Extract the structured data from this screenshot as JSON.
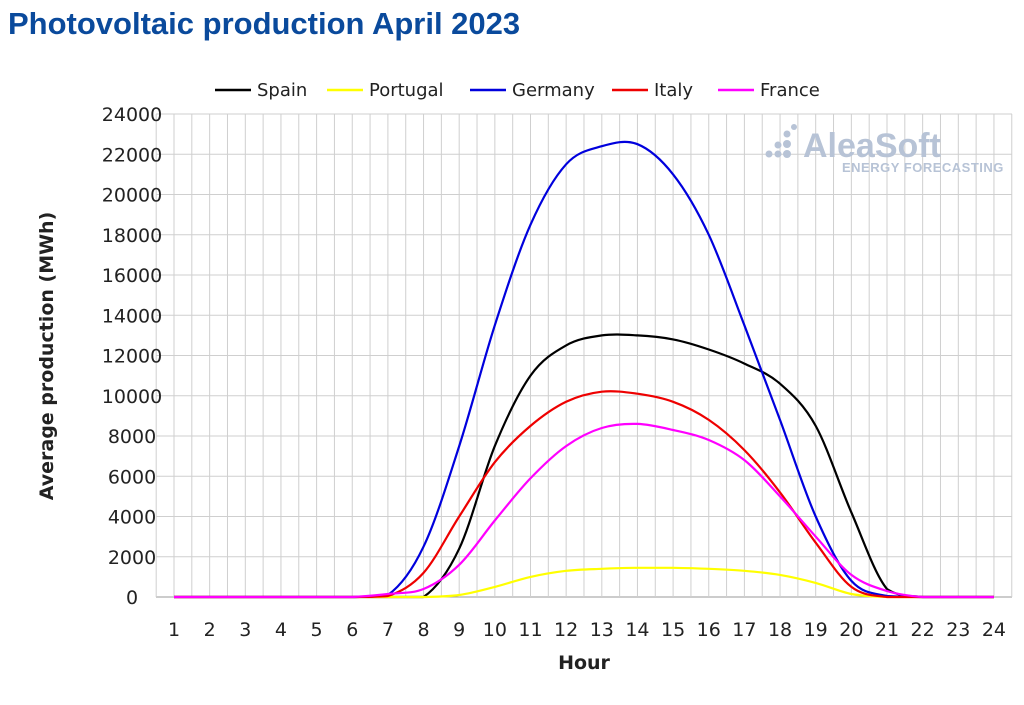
{
  "chart_data": {
    "type": "line",
    "title": "Photovoltaic production April 2023",
    "xlabel": "Hour",
    "ylabel": "Average production (MWh)",
    "x": [
      1,
      2,
      3,
      4,
      5,
      6,
      7,
      8,
      9,
      10,
      11,
      12,
      13,
      14,
      15,
      16,
      17,
      18,
      19,
      20,
      21,
      22,
      23,
      24
    ],
    "xlim": [
      1,
      24
    ],
    "ylim": [
      0,
      24000
    ],
    "yticks": [
      0,
      2000,
      4000,
      6000,
      8000,
      10000,
      12000,
      14000,
      16000,
      18000,
      20000,
      22000,
      24000
    ],
    "grid": true,
    "legend_position": "top",
    "series": [
      {
        "name": "Spain",
        "color": "#000000",
        "values": [
          0,
          0,
          0,
          0,
          0,
          0,
          0,
          0,
          2400,
          7500,
          11000,
          12500,
          13000,
          13000,
          12800,
          12300,
          11600,
          10600,
          8500,
          4200,
          400,
          0,
          0,
          0
        ]
      },
      {
        "name": "Portugal",
        "color": "#ffff00",
        "values": [
          0,
          0,
          0,
          0,
          0,
          0,
          0,
          0,
          100,
          500,
          1000,
          1300,
          1400,
          1450,
          1450,
          1400,
          1300,
          1100,
          700,
          150,
          0,
          0,
          0,
          0
        ]
      },
      {
        "name": "Germany",
        "color": "#0000dd",
        "values": [
          0,
          0,
          0,
          0,
          0,
          0,
          100,
          2500,
          7500,
          13500,
          18500,
          21500,
          22400,
          22500,
          21000,
          18000,
          13500,
          8800,
          4000,
          800,
          50,
          0,
          0,
          0
        ]
      },
      {
        "name": "Italy",
        "color": "#ee0000",
        "values": [
          0,
          0,
          0,
          0,
          0,
          0,
          50,
          1200,
          4000,
          6700,
          8500,
          9700,
          10200,
          10100,
          9700,
          8800,
          7300,
          5200,
          2700,
          500,
          0,
          0,
          0,
          0
        ]
      },
      {
        "name": "France",
        "color": "#ff00ff",
        "values": [
          0,
          0,
          0,
          0,
          0,
          0,
          150,
          400,
          1600,
          3800,
          5900,
          7500,
          8400,
          8600,
          8300,
          7800,
          6800,
          5000,
          3000,
          1100,
          300,
          0,
          0,
          0
        ]
      }
    ]
  },
  "watermark": {
    "name": "AleaSoft",
    "tagline": "ENERGY FORECASTING"
  }
}
